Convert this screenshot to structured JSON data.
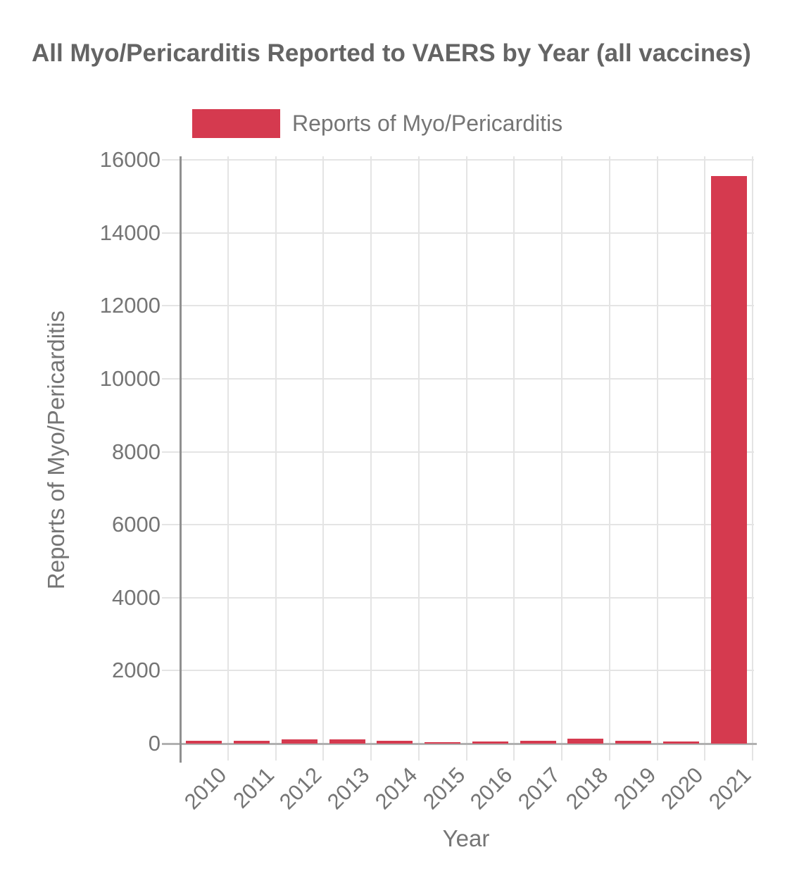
{
  "page": {
    "background": "#ffffff"
  },
  "legend": {
    "label": "Reports of Myo/Pericarditis"
  },
  "colors": {
    "bar": "#d53a4f",
    "title_text": "#646464",
    "axis_text": "#757575",
    "gridline": "#e4e4e4",
    "zero_line": "#b0b0b0",
    "axis_line": "#909090",
    "background": "#ffffff"
  },
  "chart_data": {
    "type": "bar",
    "title": "All Myo/Pericarditis Reported to VAERS by Year (all vaccines)",
    "categories": [
      "2010",
      "2011",
      "2012",
      "2013",
      "2014",
      "2015",
      "2016",
      "2017",
      "2018",
      "2019",
      "2020",
      "2021"
    ],
    "series": [
      {
        "name": "Reports of Myo/Pericarditis",
        "values": [
          85,
          85,
          115,
          110,
          85,
          35,
          60,
          75,
          130,
          80,
          55,
          15550
        ],
        "color": "#d53a4f"
      }
    ],
    "xlabel": "Year",
    "ylabel": "Reports of Myo/Pericarditis",
    "ylim": [
      0,
      16000
    ],
    "ytick_interval": 2000,
    "yticks": [
      0,
      2000,
      4000,
      6000,
      8000,
      10000,
      12000,
      14000,
      16000
    ],
    "grid": true,
    "legend_position": "top",
    "x_tick_rotation_deg": 45
  }
}
